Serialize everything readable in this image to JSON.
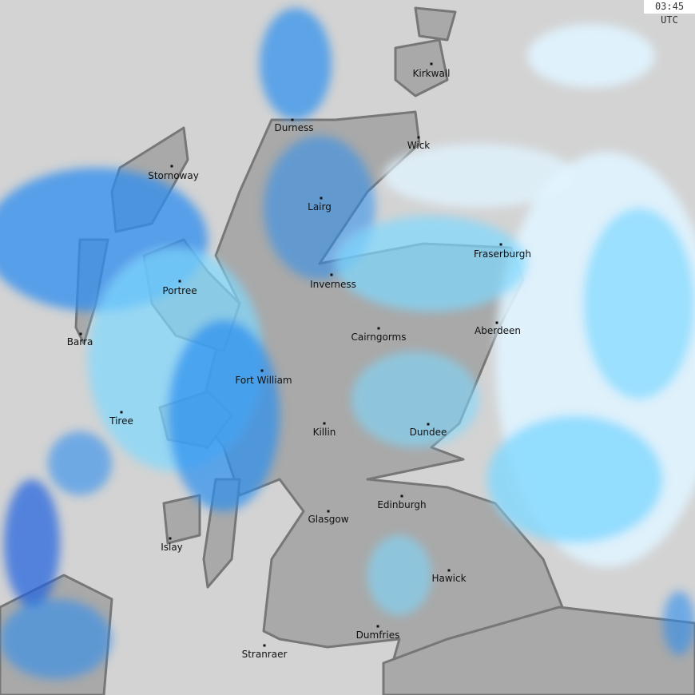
{
  "timestamp": "03:45 UTC",
  "colors": {
    "sea": "#d3d3d3",
    "land": "#a9a9a9",
    "coast": "#777777",
    "rain_light": "#e0f4ff",
    "rain_mid": "#7fd8ff",
    "rain_heavy": "#2b8ef0",
    "rain_very_heavy": "#1a5fe0"
  },
  "cities": [
    "Kirkwall",
    "Durness",
    "Wick",
    "Stornoway",
    "Lairg",
    "Fraserburgh",
    "Inverness",
    "Portree",
    "Aberdeen",
    "Cairngorms",
    "Barra",
    "Fort William",
    "Tiree",
    "Killin",
    "Dundee",
    "Edinburgh",
    "Glasgow",
    "Islay",
    "Hawick",
    "Dumfries",
    "Stranraer"
  ]
}
